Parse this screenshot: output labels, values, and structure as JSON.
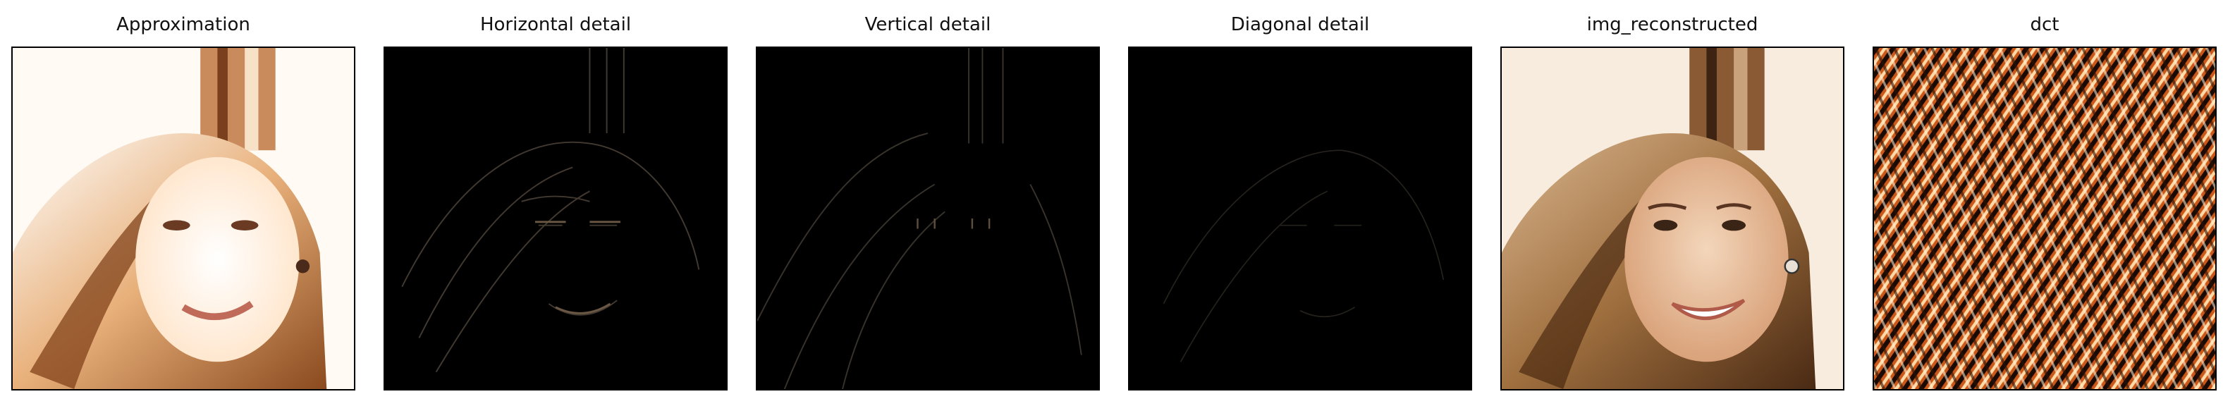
{
  "panels": [
    {
      "title": "Approximation",
      "kind": "approx"
    },
    {
      "title": "Horizontal detail",
      "kind": "detail-h"
    },
    {
      "title": "Vertical detail",
      "kind": "detail-v"
    },
    {
      "title": "Diagonal detail",
      "kind": "detail-d"
    },
    {
      "title": "img_reconstructed",
      "kind": "photo"
    },
    {
      "title": "dct",
      "kind": "dct"
    }
  ]
}
